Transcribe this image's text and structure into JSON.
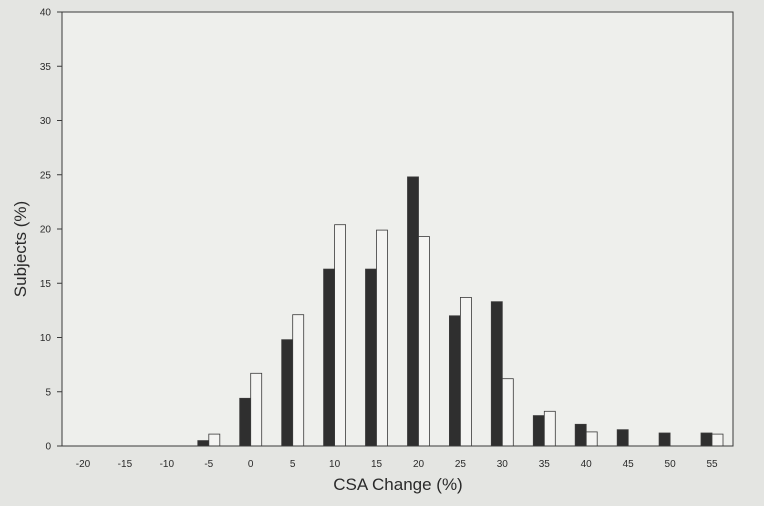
{
  "colors": {
    "paper": "#e4e5e2",
    "plot_area": "#eeefec",
    "axis": "#3a3a3a",
    "dark_bar": "#2f2f2f",
    "light_bar": "#f4f4f2",
    "text": "#2a2a2a"
  },
  "chart_data": {
    "type": "bar",
    "title": "",
    "xlabel": "CSA Change (%)",
    "ylabel": "Subjects (%)",
    "ylim": [
      0,
      40
    ],
    "yticks": [
      "0",
      "5",
      "10",
      "15",
      "20",
      "25",
      "30",
      "35",
      "40"
    ],
    "categories": [
      "-20",
      "-15",
      "-10",
      "-5",
      "0",
      "5",
      "10",
      "15",
      "20",
      "25",
      "30",
      "35",
      "40",
      "45",
      "50",
      "55"
    ],
    "grid": false,
    "legend": "none",
    "series": [
      {
        "color": "#2f2f2f",
        "values": [
          0,
          0,
          0,
          0.5,
          4.4,
          9.8,
          16.3,
          16.3,
          24.8,
          12.0,
          13.3,
          2.8,
          2.0,
          1.5,
          1.2,
          1.2
        ]
      },
      {
        "color": "#f4f4f2",
        "values": [
          0,
          0,
          0,
          1.1,
          6.7,
          12.1,
          20.4,
          19.9,
          19.3,
          13.7,
          6.2,
          3.2,
          1.3,
          0,
          0,
          1.1
        ]
      }
    ]
  }
}
